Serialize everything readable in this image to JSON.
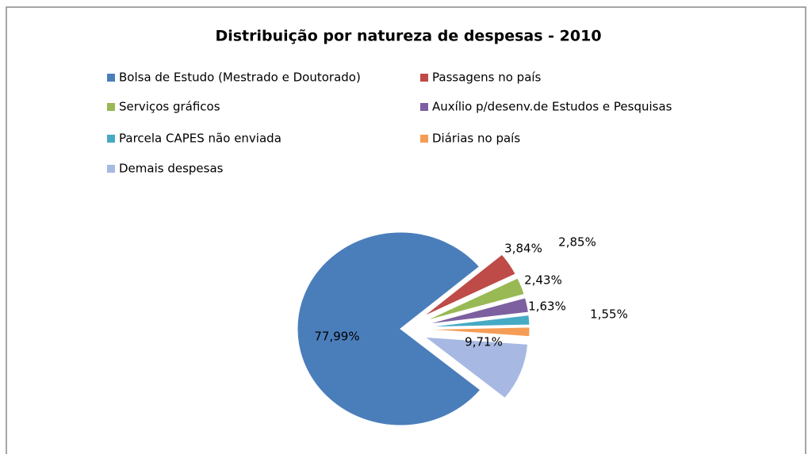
{
  "chart_data": {
    "type": "pie",
    "title": "Distribuição por natureza de despesas - 2010",
    "categories": [
      "Bolsa de Estudo (Mestrado e Doutorado)",
      "Passagens no país",
      "Serviços gráficos",
      "Auxílio p/desenv.de Estudos e Pesquisas",
      "Parcela CAPES não enviada",
      "Diárias no país",
      "Demais despesas"
    ],
    "values": [
      77.99,
      3.84,
      2.85,
      2.43,
      1.63,
      1.55,
      9.71
    ],
    "value_labels": [
      "77,99%",
      "3,84%",
      "2,85%",
      "2,43%",
      "1,63%",
      "1,55%",
      "9,71%"
    ],
    "colors": [
      "#4a7ebb",
      "#be4b48",
      "#98b954",
      "#7d60a0",
      "#46aac5",
      "#f59d56",
      "#a7b9e3"
    ]
  }
}
